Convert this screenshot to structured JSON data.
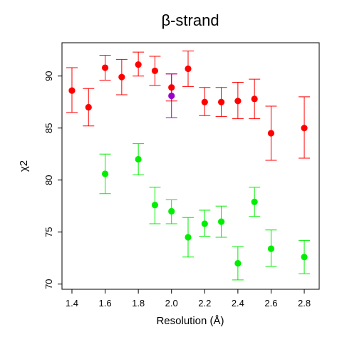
{
  "chart_data": {
    "type": "scatter",
    "title": "β-strand",
    "xlabel": "Resolution (Å)",
    "ylabel": "χ2",
    "xlim": [
      1.34,
      2.89
    ],
    "ylim": [
      69.5,
      93.2
    ],
    "x_ticks": [
      1.4,
      1.6,
      1.8,
      2.0,
      2.2,
      2.4,
      2.6,
      2.8
    ],
    "x_tick_labels": [
      "1.4",
      "1.6",
      "1.8",
      "2.0",
      "2.2",
      "2.4",
      "2.6",
      "2.8"
    ],
    "y_ticks": [
      70,
      75,
      80,
      85,
      90
    ],
    "y_tick_labels": [
      "70",
      "75",
      "80",
      "85",
      "90"
    ],
    "grid": false,
    "series": [
      {
        "color": "#ff0000",
        "points": [
          {
            "x": 1.4,
            "y": 88.6,
            "low": 86.5,
            "high": 90.8
          },
          {
            "x": 1.5,
            "y": 87.0,
            "low": 85.2,
            "high": 88.8
          },
          {
            "x": 1.6,
            "y": 90.8,
            "low": 89.6,
            "high": 92.0
          },
          {
            "x": 1.7,
            "y": 89.9,
            "low": 88.2,
            "high": 91.6
          },
          {
            "x": 1.8,
            "y": 91.1,
            "low": 90.0,
            "high": 92.3
          },
          {
            "x": 1.9,
            "y": 90.5,
            "low": 89.1,
            "high": 91.9
          },
          {
            "x": 2.0,
            "y": 88.9,
            "low": 87.6,
            "high": 90.2
          },
          {
            "x": 2.1,
            "y": 90.7,
            "low": 89.0,
            "high": 92.4
          },
          {
            "x": 2.2,
            "y": 87.5,
            "low": 86.2,
            "high": 88.9
          },
          {
            "x": 2.3,
            "y": 87.5,
            "low": 86.1,
            "high": 88.9
          },
          {
            "x": 2.4,
            "y": 87.6,
            "low": 85.9,
            "high": 89.4
          },
          {
            "x": 2.5,
            "y": 87.8,
            "low": 85.9,
            "high": 89.7
          },
          {
            "x": 2.6,
            "y": 84.5,
            "low": 81.9,
            "high": 87.1
          },
          {
            "x": 2.8,
            "y": 85.0,
            "low": 82.1,
            "high": 88.0
          }
        ]
      },
      {
        "color": "#9900cc",
        "points": [
          {
            "x": 2.0,
            "y": 88.1,
            "low": 86.0,
            "high": 90.2
          }
        ]
      },
      {
        "color": "#00ee00",
        "points": [
          {
            "x": 1.6,
            "y": 80.6,
            "low": 78.7,
            "high": 82.5
          },
          {
            "x": 1.8,
            "y": 82.0,
            "low": 80.5,
            "high": 83.5
          },
          {
            "x": 1.9,
            "y": 77.6,
            "low": 75.8,
            "high": 79.3
          },
          {
            "x": 2.0,
            "y": 77.0,
            "low": 75.8,
            "high": 78.1
          },
          {
            "x": 2.1,
            "y": 74.5,
            "low": 72.6,
            "high": 76.4
          },
          {
            "x": 2.2,
            "y": 75.8,
            "low": 74.6,
            "high": 77.1
          },
          {
            "x": 2.3,
            "y": 76.0,
            "low": 74.5,
            "high": 77.5
          },
          {
            "x": 2.4,
            "y": 72.0,
            "low": 70.4,
            "high": 73.6
          },
          {
            "x": 2.5,
            "y": 77.9,
            "low": 76.5,
            "high": 79.3
          },
          {
            "x": 2.6,
            "y": 73.4,
            "low": 71.7,
            "high": 75.2
          },
          {
            "x": 2.8,
            "y": 72.6,
            "low": 71.0,
            "high": 74.2
          }
        ]
      }
    ]
  }
}
